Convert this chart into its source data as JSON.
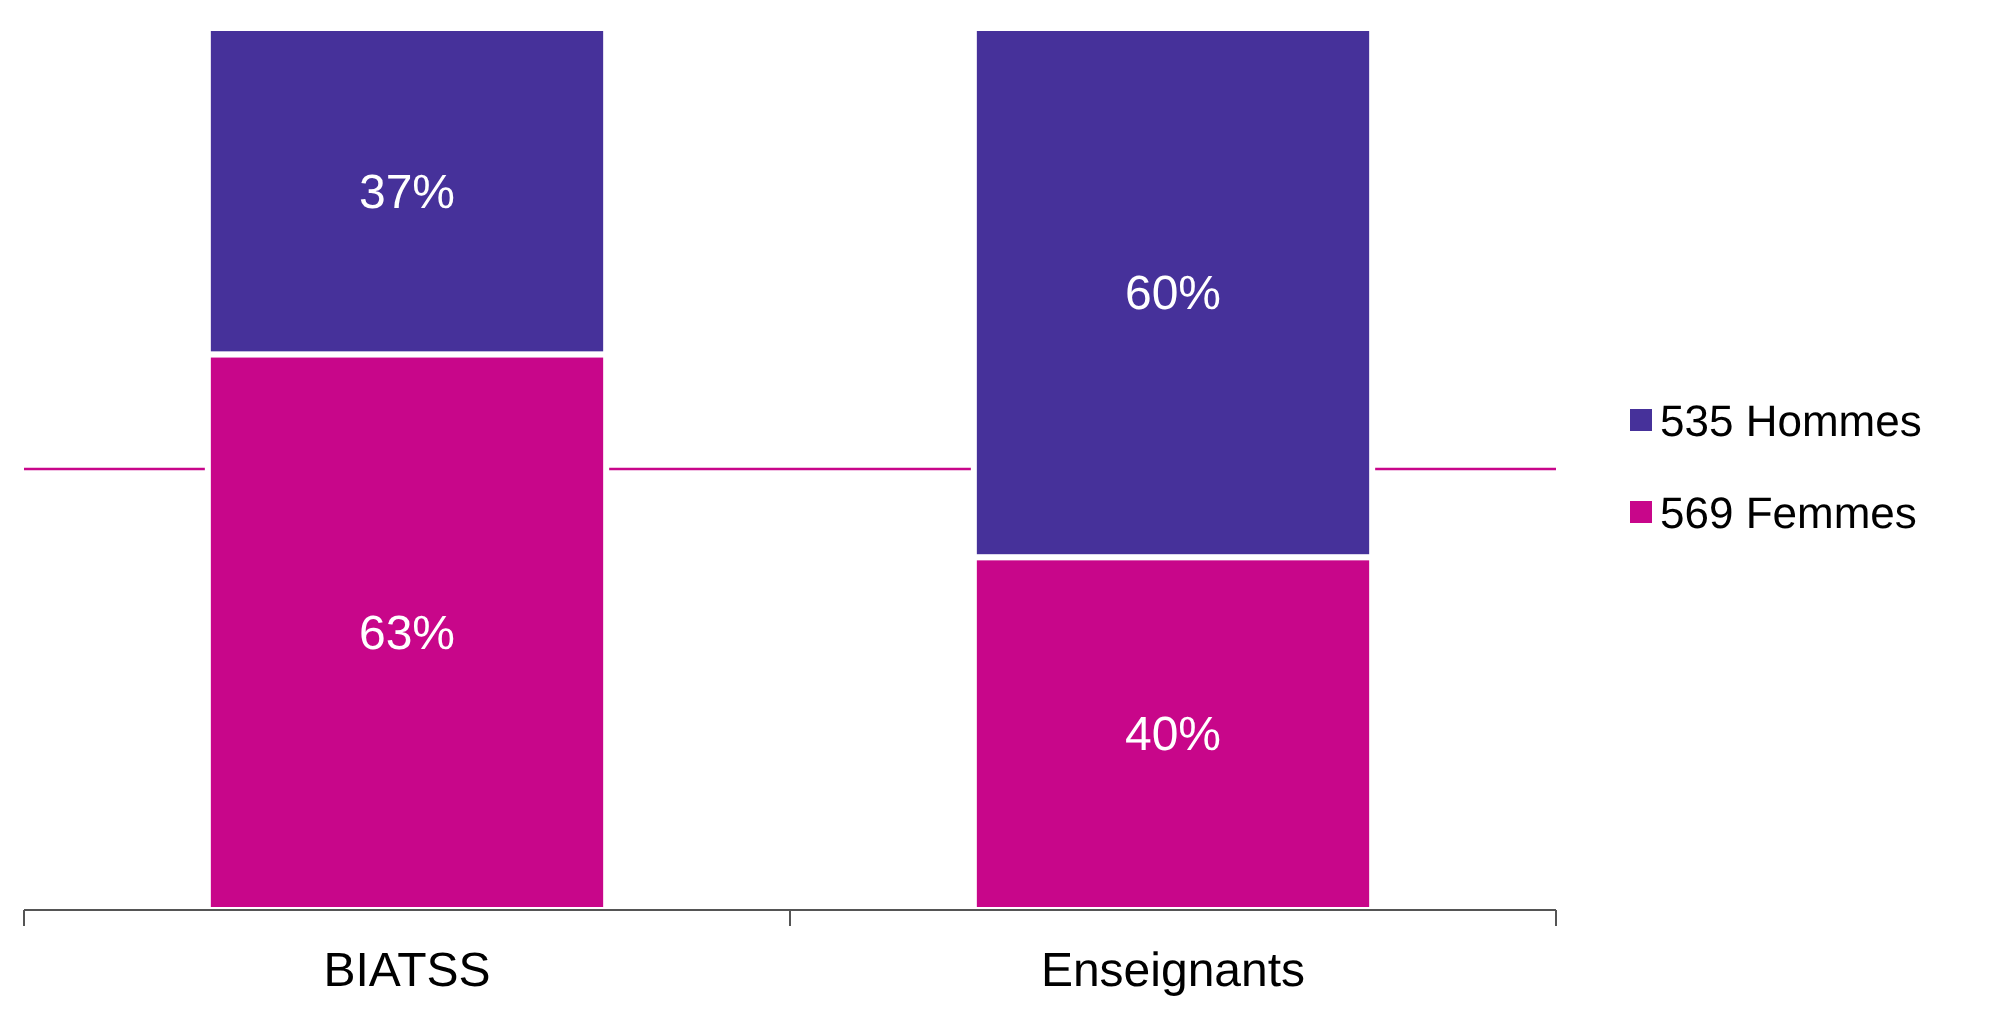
{
  "chart_data": {
    "type": "bar",
    "stacked": true,
    "categories": [
      "BIATSS",
      "Enseignants"
    ],
    "series": [
      {
        "name": "569 Femmes",
        "color": "#c8068a",
        "values": [
          63,
          40
        ],
        "value_labels": [
          "63%",
          "40%"
        ]
      },
      {
        "name": "535 Hommes",
        "color": "#46319a",
        "values": [
          37,
          60
        ],
        "value_labels": [
          "37%",
          "60%"
        ]
      }
    ],
    "ylim": [
      0,
      100
    ],
    "legend": "right",
    "tick_labels": "x",
    "ref_lines": [
      {
        "axis": "y",
        "value": 50,
        "color": "#c8068a"
      }
    ]
  }
}
